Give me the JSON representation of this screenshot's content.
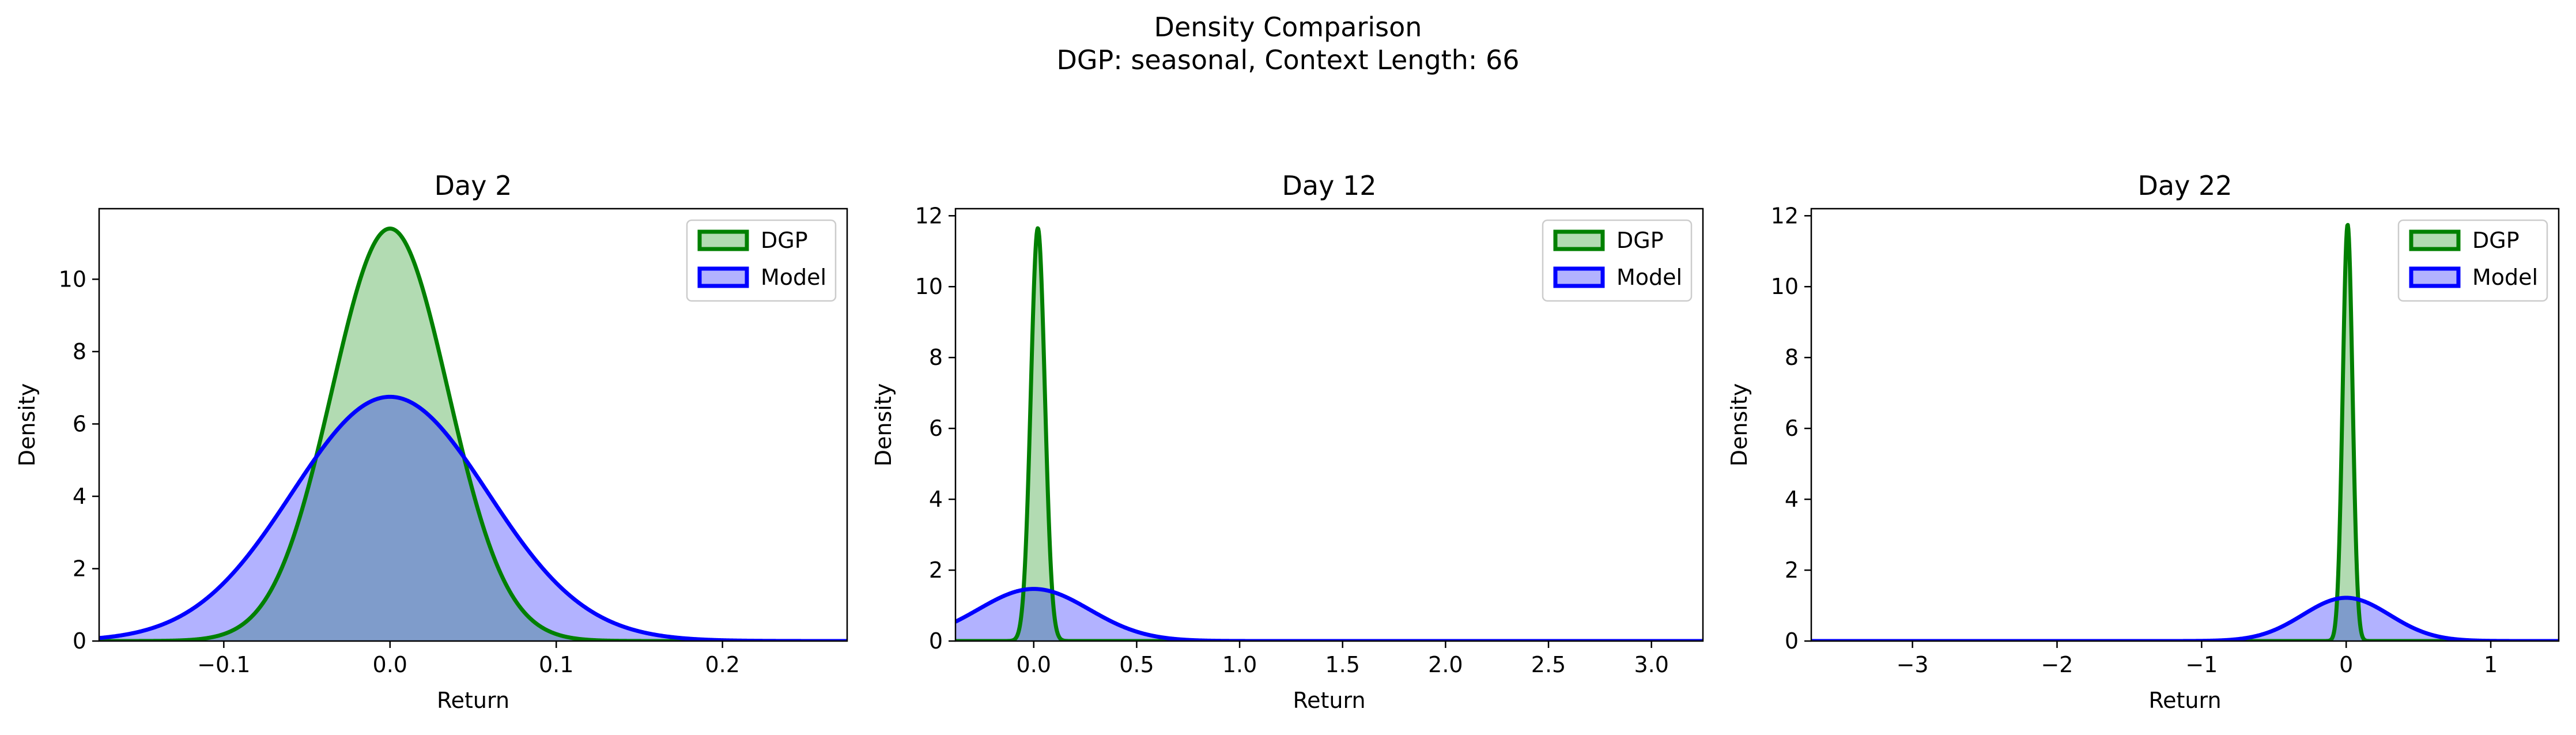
{
  "figure": {
    "title_line1": "Density Comparison",
    "title_line2": "DGP: seasonal, Context Length: 66"
  },
  "colors": {
    "dgp_line": "#008000",
    "dgp_fill": "#b2dbb2",
    "model_line": "#0000ff",
    "model_fill": "#b2b2ff",
    "overlap_fill": "#7f9ccb"
  },
  "chart_data": [
    {
      "type": "area",
      "title": "Day 2",
      "xlabel": "Return",
      "ylabel": "Density",
      "xlim": [
        -0.175,
        0.275
      ],
      "ylim": [
        0,
        11.95
      ],
      "xticks": [
        -0.1,
        0.0,
        0.1,
        0.2
      ],
      "xtick_labels": [
        "−0.1",
        "0.0",
        "0.1",
        "0.2"
      ],
      "yticks": [
        0,
        2,
        4,
        6,
        8,
        10
      ],
      "ytick_labels": [
        "0",
        "2",
        "4",
        "6",
        "8",
        "10"
      ],
      "legend_position": "top-right",
      "series": [
        {
          "name": "DGP",
          "distribution": "normal",
          "mean": 0.0,
          "std": 0.035,
          "peak_density": 11.4
        },
        {
          "name": "Model",
          "distribution": "normal",
          "mean": 0.0,
          "std": 0.059,
          "peak_density": 6.75
        }
      ]
    },
    {
      "type": "area",
      "title": "Day 12",
      "xlabel": "Return",
      "ylabel": "Density",
      "xlim": [
        -0.38,
        3.25
      ],
      "ylim": [
        0,
        12.2
      ],
      "xticks": [
        0.0,
        0.5,
        1.0,
        1.5,
        2.0,
        2.5,
        3.0
      ],
      "xtick_labels": [
        "0.0",
        "0.5",
        "1.0",
        "1.5",
        "2.0",
        "2.5",
        "3.0"
      ],
      "yticks": [
        0,
        2,
        4,
        6,
        8,
        10,
        12
      ],
      "ytick_labels": [
        "0",
        "2",
        "4",
        "6",
        "8",
        "10",
        "12"
      ],
      "legend_position": "top-right",
      "series": [
        {
          "name": "DGP",
          "distribution": "normal",
          "mean": 0.02,
          "std": 0.034,
          "peak_density": 11.65
        },
        {
          "name": "Model",
          "distribution": "normal",
          "mean": 0.0,
          "std": 0.27,
          "peak_density": 1.47
        }
      ]
    },
    {
      "type": "area",
      "title": "Day 22",
      "xlabel": "Return",
      "ylabel": "Density",
      "xlim": [
        -3.7,
        1.47
      ],
      "ylim": [
        0,
        12.2
      ],
      "xticks": [
        -3,
        -2,
        -1,
        0,
        1
      ],
      "xtick_labels": [
        "−3",
        "−2",
        "−1",
        "0",
        "1"
      ],
      "yticks": [
        0,
        2,
        4,
        6,
        8,
        10,
        12
      ],
      "ytick_labels": [
        "0",
        "2",
        "4",
        "6",
        "8",
        "10",
        "12"
      ],
      "legend_position": "top-right",
      "series": [
        {
          "name": "DGP",
          "distribution": "normal",
          "mean": 0.01,
          "std": 0.034,
          "peak_density": 11.75
        },
        {
          "name": "Model",
          "distribution": "normal",
          "mean": 0.0,
          "std": 0.3,
          "peak_density": 1.22
        }
      ]
    }
  ]
}
